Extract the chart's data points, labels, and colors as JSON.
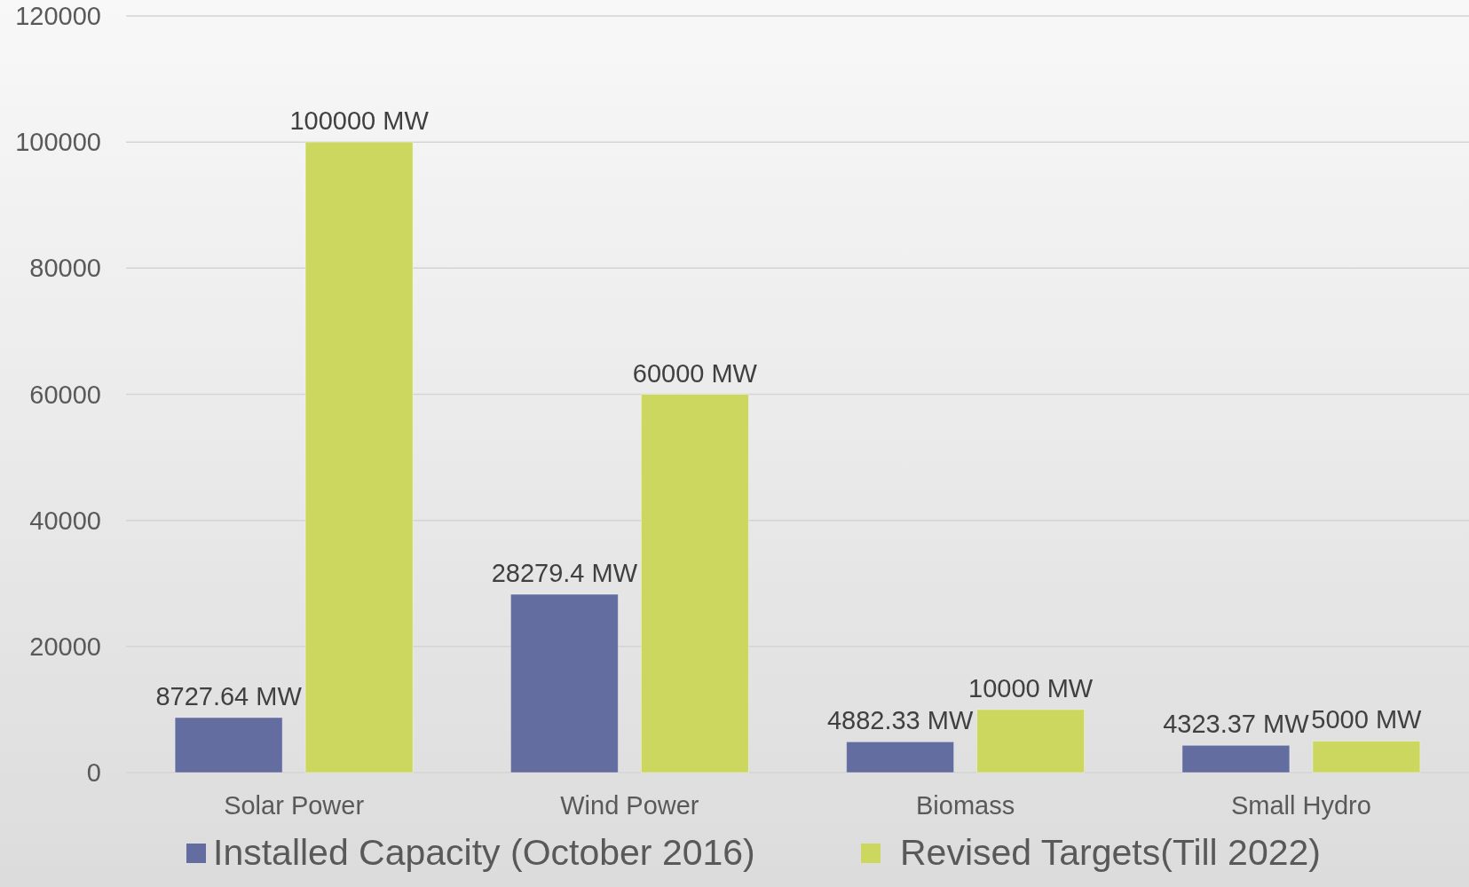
{
  "chart_data": {
    "type": "bar",
    "categories": [
      "Solar Power",
      "Wind Power",
      "Biomass",
      "Small Hydro"
    ],
    "series": [
      {
        "name": "Installed Capacity (October 2016)",
        "color": "#636d9f",
        "values": [
          8727.64,
          28279.4,
          4882.33,
          4323.37
        ],
        "value_labels": [
          "8727.64 MW",
          "28279.4 MW",
          "4882.33 MW",
          "4323.37 MW"
        ]
      },
      {
        "name": "Revised Targets(Till 2022)",
        "color": "#cbd75e",
        "values": [
          100000,
          60000,
          10000,
          5000
        ],
        "value_labels": [
          "100000 MW",
          "60000 MW",
          "10000 MW",
          "5000 MW"
        ]
      }
    ],
    "ylim": [
      0,
      120000
    ],
    "yticks": [
      0,
      20000,
      40000,
      60000,
      80000,
      100000,
      120000
    ],
    "grid": "y",
    "legend": "bottom"
  }
}
